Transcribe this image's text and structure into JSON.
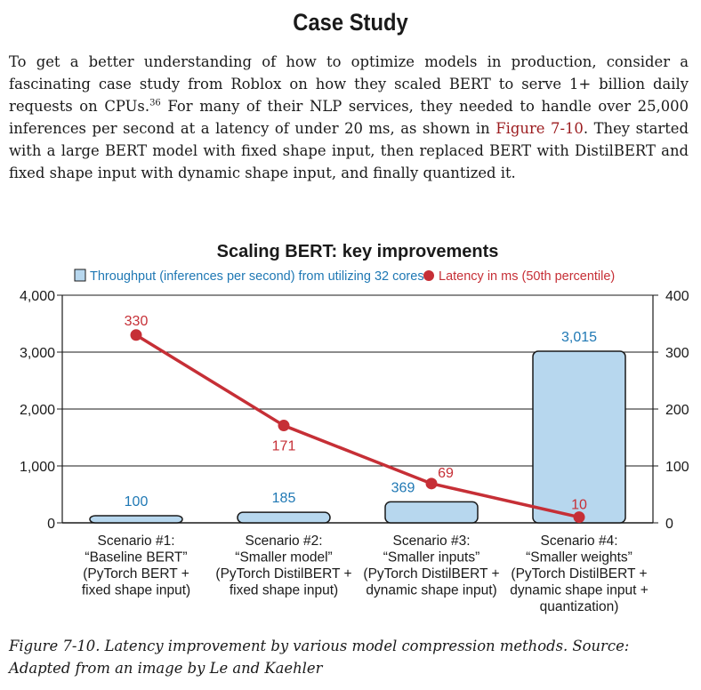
{
  "heading": "Case Study",
  "paragraph": {
    "text_1": "To get a better understanding of how to optimize models in production, consider a fascinating case study from Roblox on how they scaled BERT to serve 1+ billion daily requests on CPUs.",
    "footnote": "36",
    "text_2": " For many of their NLP services, they needed to handle over 25,000 inferences per second at a latency of under 20 ms, as shown in ",
    "figure_ref": "Figure 7-10",
    "text_3": ". They started with a large BERT model with fixed shape input, then replaced BERT with DistilBERT and fixed shape input with dynamic shape input, and finally quantized it."
  },
  "caption": "Figure 7-10. Latency improvement by various model compression methods. Source: Adapted from an image by Le and Kaehler",
  "chart_data": {
    "type": "bar",
    "title": "Scaling BERT: key improvements",
    "categories": [
      [
        "Scenario #1:",
        "“Baseline BERT”",
        "(PyTorch BERT +",
        "fixed shape input)"
      ],
      [
        "Scenario #2:",
        "“Smaller model”",
        "(PyTorch DistilBERT +",
        "fixed shape input)"
      ],
      [
        "Scenario #3:",
        "“Smaller inputs”",
        "(PyTorch DistilBERT +",
        "dynamic shape input)"
      ],
      [
        "Scenario #4:",
        "“Smaller weights”",
        "(PyTorch DistilBERT +",
        "dynamic shape input +",
        "quantization)"
      ]
    ],
    "series": [
      {
        "name": "Throughput (inferences per second) from utilizing 32 cores",
        "type": "bar",
        "axis": "left",
        "values": [
          100,
          185,
          369,
          3015
        ],
        "labels": [
          "100",
          "185",
          "369",
          "3,015"
        ],
        "color": "#b7d7ee",
        "label_color": "#1f78b4"
      },
      {
        "name": "Latency in ms (50th percentile)",
        "type": "line",
        "axis": "right",
        "values": [
          330,
          171,
          69,
          10
        ],
        "labels": [
          "330",
          "171",
          "69",
          "10"
        ],
        "color": "#c62f36",
        "label_color": "#c62f36"
      }
    ],
    "y_left": {
      "lim": [
        0,
        4000
      ],
      "ticks": [
        0,
        1000,
        2000,
        3000,
        4000
      ],
      "tick_labels": [
        "0",
        "1,000",
        "2,000",
        "3,000",
        "4,000"
      ]
    },
    "y_right": {
      "lim": [
        0,
        400
      ],
      "ticks": [
        0,
        100,
        200,
        300,
        400
      ],
      "tick_labels": [
        "0",
        "100",
        "200",
        "300",
        "400"
      ]
    },
    "grid": "horizontal",
    "legend_position": "top"
  }
}
